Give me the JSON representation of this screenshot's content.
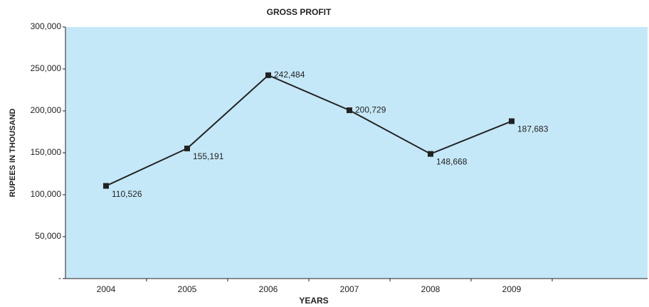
{
  "chart_data": {
    "type": "line",
    "title": "GROSS PROFIT",
    "x_label": "YEARS",
    "y_label": "RUPEES IN THOUSAND",
    "categories": [
      "2004",
      "2005",
      "2006",
      "2007",
      "2008",
      "2009"
    ],
    "series": [
      {
        "name": "Gross Profit",
        "color": "#222222",
        "values": [
          110526,
          155191,
          242484,
          200729,
          148668,
          187683
        ],
        "value_labels": [
          "110,526",
          "155,191",
          "242,484",
          "200,729",
          "148,668",
          "187,683"
        ]
      }
    ],
    "ylim": [
      0,
      300000
    ],
    "yticks": [
      {
        "value": 0,
        "label": "-"
      },
      {
        "value": 50000,
        "label": "50,000"
      },
      {
        "value": 100000,
        "label": "100,000"
      },
      {
        "value": 150000,
        "label": "150,000"
      },
      {
        "value": 200000,
        "label": "200,000"
      },
      {
        "value": 250000,
        "label": "250,000"
      },
      {
        "value": 300000,
        "label": "300,000"
      }
    ],
    "background": "#c5e8f8"
  }
}
